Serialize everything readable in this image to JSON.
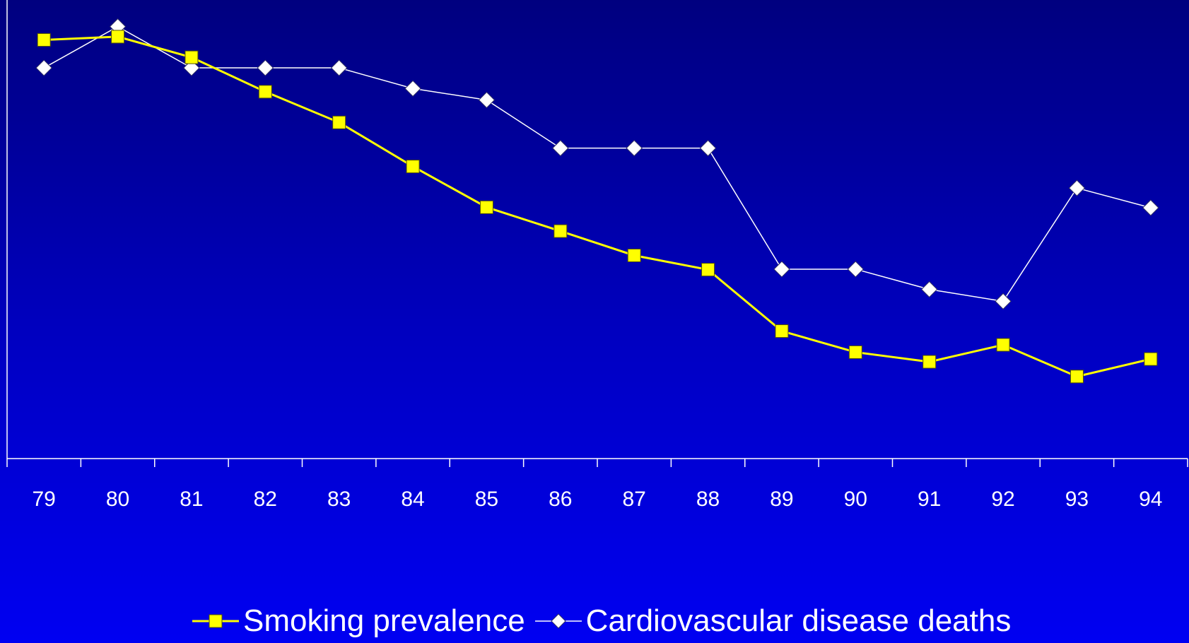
{
  "chart_data": {
    "type": "line",
    "title": "",
    "xlabel": "",
    "ylabel": "",
    "categories": [
      "79",
      "80",
      "81",
      "82",
      "83",
      "84",
      "85",
      "86",
      "87",
      "88",
      "89",
      "90",
      "91",
      "92",
      "93",
      "94"
    ],
    "ylim": [
      0,
      100
    ],
    "y_ticks_labeled": false,
    "grid": false,
    "legend": "bottom",
    "series": [
      {
        "name": "Smoking prevalence",
        "color": "#ffff00",
        "marker": "square",
        "values": [
          91.3,
          92.0,
          87.5,
          80.0,
          73.3,
          63.7,
          54.8,
          49.6,
          44.3,
          41.2,
          27.8,
          23.2,
          21.1,
          24.8,
          17.9,
          21.7
        ]
      },
      {
        "name": "Cardiovascular disease deaths",
        "color": "#ffffff",
        "marker": "diamond",
        "values": [
          85.2,
          94.2,
          85.2,
          85.2,
          85.2,
          80.7,
          78.2,
          67.7,
          67.7,
          67.7,
          41.3,
          41.3,
          36.9,
          34.3,
          59.0,
          54.7
        ]
      }
    ]
  }
}
